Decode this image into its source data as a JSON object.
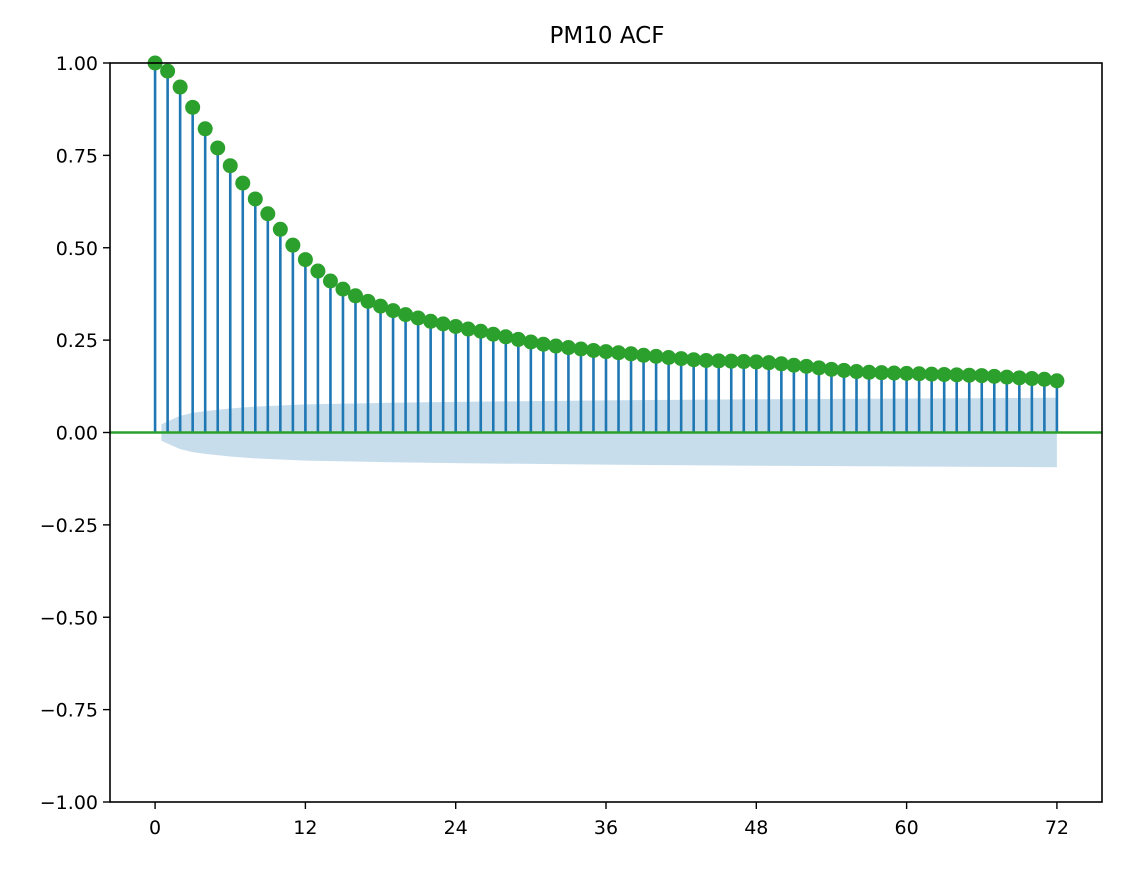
{
  "chart_data": {
    "type": "stem",
    "title": "PM10 ACF",
    "xlabel": "",
    "ylabel": "",
    "xlim": [
      -3.6,
      75.6
    ],
    "ylim": [
      -1.0,
      1.0
    ],
    "x_ticks": [
      0,
      12,
      24,
      36,
      48,
      60,
      72
    ],
    "x_tick_labels": [
      "0",
      "12",
      "24",
      "36",
      "48",
      "60",
      "72"
    ],
    "y_ticks": [
      1.0,
      0.75,
      0.5,
      0.25,
      0.0,
      -0.25,
      -0.5,
      -0.75,
      -1.0
    ],
    "y_tick_labels": [
      "1.00",
      "0.75",
      "0.50",
      "0.25",
      "0.00",
      "−0.25",
      "−0.50",
      "−0.75",
      "−1.00"
    ],
    "grid": false,
    "lags": [
      0,
      1,
      2,
      3,
      4,
      5,
      6,
      7,
      8,
      9,
      10,
      11,
      12,
      13,
      14,
      15,
      16,
      17,
      18,
      19,
      20,
      21,
      22,
      23,
      24,
      25,
      26,
      27,
      28,
      29,
      30,
      31,
      32,
      33,
      34,
      35,
      36,
      37,
      38,
      39,
      40,
      41,
      42,
      43,
      44,
      45,
      46,
      47,
      48,
      49,
      50,
      51,
      52,
      53,
      54,
      55,
      56,
      57,
      58,
      59,
      60,
      61,
      62,
      63,
      64,
      65,
      66,
      67,
      68,
      69,
      70,
      71,
      72
    ],
    "acf": [
      1.0,
      0.978,
      0.935,
      0.88,
      0.822,
      0.77,
      0.722,
      0.675,
      0.632,
      0.592,
      0.55,
      0.507,
      0.468,
      0.437,
      0.41,
      0.388,
      0.37,
      0.355,
      0.342,
      0.33,
      0.319,
      0.31,
      0.301,
      0.294,
      0.287,
      0.28,
      0.274,
      0.266,
      0.259,
      0.252,
      0.245,
      0.239,
      0.234,
      0.23,
      0.226,
      0.222,
      0.219,
      0.216,
      0.213,
      0.209,
      0.206,
      0.203,
      0.2,
      0.197,
      0.195,
      0.194,
      0.193,
      0.192,
      0.191,
      0.189,
      0.186,
      0.182,
      0.179,
      0.175,
      0.171,
      0.168,
      0.165,
      0.163,
      0.162,
      0.161,
      0.16,
      0.159,
      0.158,
      0.157,
      0.156,
      0.155,
      0.154,
      0.152,
      0.15,
      0.148,
      0.146,
      0.144,
      0.14
    ],
    "confidence_band": {
      "lags": [
        0.5,
        1,
        2,
        3,
        4,
        6,
        8,
        12,
        18,
        24,
        36,
        48,
        60,
        72
      ],
      "upper": [
        0.022,
        0.03,
        0.045,
        0.053,
        0.058,
        0.065,
        0.07,
        0.076,
        0.08,
        0.083,
        0.087,
        0.09,
        0.092,
        0.094
      ],
      "lower": [
        -0.022,
        -0.03,
        -0.045,
        -0.053,
        -0.058,
        -0.065,
        -0.07,
        -0.076,
        -0.08,
        -0.083,
        -0.087,
        -0.09,
        -0.092,
        -0.094
      ]
    },
    "colors": {
      "stem": "#1f77b4",
      "marker": "#2ca02c",
      "zero_line": "#2ca02c",
      "band": "#1f77b4",
      "band_opacity": 0.25,
      "axes": "#000000"
    }
  }
}
